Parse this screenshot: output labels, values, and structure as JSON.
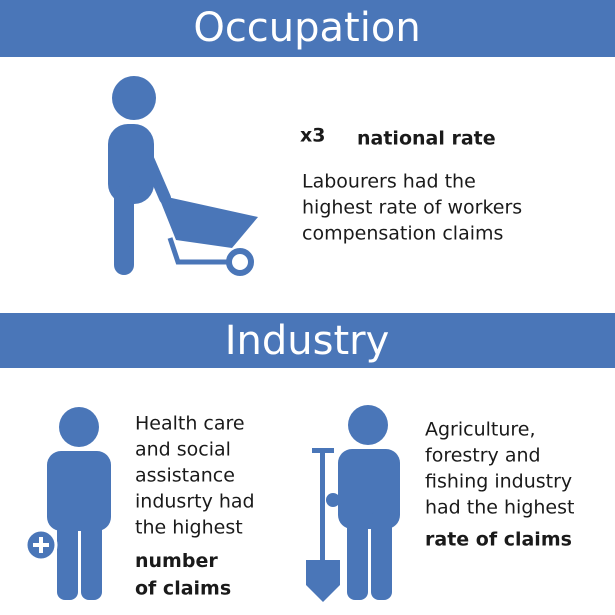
{
  "occupation": {
    "title": "Occupation",
    "multiplier": "x3",
    "multiplier_caption": "national rate",
    "lines": [
      "Labourers had the",
      "highest rate of workers",
      "compensation claims"
    ]
  },
  "industry": {
    "title": "Industry",
    "health": {
      "lines": [
        "Health care",
        "and social",
        "assistance",
        "indusrty had",
        "the highest"
      ],
      "bold_lines": [
        "number",
        "of claims"
      ]
    },
    "agriculture": {
      "lines": [
        "Agriculture,",
        "forestry and",
        "fishing industry",
        "had the highest"
      ],
      "bold_lines": [
        "rate of claims"
      ]
    }
  }
}
